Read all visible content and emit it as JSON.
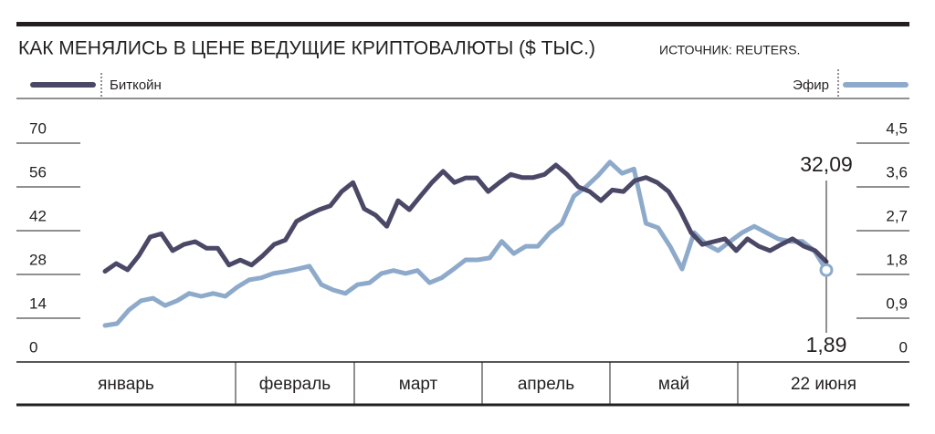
{
  "chart_data": {
    "type": "line",
    "title": "КАК МЕНЯЛИСЬ В ЦЕНЕ ВЕДУЩИЕ КРИПТОВАЛЮТЫ ($ ТЫС.)",
    "source": "ИСТОЧНИК: REUTERS.",
    "month_labels": [
      "январь",
      "февраль",
      "март",
      "апрель",
      "май",
      "22 июня"
    ],
    "ylim": [
      0,
      70
    ],
    "yticks": [
      0,
      14,
      28,
      42,
      56,
      70
    ],
    "y2lim": [
      0,
      4.5
    ],
    "y2ticks": [
      0,
      {
        "value": 0.9,
        "label": "0,9"
      },
      {
        "value": 1.8,
        "label": "1,8"
      },
      {
        "value": 2.7,
        "label": "2,7"
      },
      {
        "value": 3.6,
        "label": "3,6"
      },
      {
        "value": 4.5,
        "label": "4,5"
      }
    ],
    "series": [
      {
        "name": "Биткойн",
        "color": "#4a4866",
        "end_label": "32,09",
        "values": [
          29,
          31.5,
          29.5,
          34,
          40,
          41,
          35.6,
          37.6,
          38.5,
          36.4,
          36.4,
          31,
          32.6,
          31,
          34,
          37.6,
          39,
          45,
          47,
          48.7,
          50,
          54.5,
          57.4,
          49,
          47,
          43.4,
          51.6,
          48.7,
          53.1,
          57.4,
          61,
          57.4,
          58.9,
          58.9,
          54.5,
          57.4,
          60,
          59,
          59,
          60,
          63,
          60,
          56,
          54.5,
          51.6,
          55,
          54.5,
          58,
          59,
          57.4,
          54.5,
          48.7,
          41.4,
          37.6,
          38.5,
          39.4,
          35.6,
          39.4,
          37,
          35.6,
          37.6,
          39.4,
          37,
          35.6,
          32.09
        ]
      },
      {
        "name": "Эфир",
        "color": "#8eaacb",
        "axis": "y2",
        "end_label": "1,89",
        "values": [
          0.75,
          0.79,
          1.07,
          1.26,
          1.31,
          1.16,
          1.26,
          1.41,
          1.35,
          1.41,
          1.35,
          1.54,
          1.69,
          1.73,
          1.82,
          1.86,
          1.91,
          1.97,
          1.59,
          1.48,
          1.41,
          1.59,
          1.63,
          1.82,
          1.88,
          1.82,
          1.88,
          1.63,
          1.73,
          1.91,
          2.1,
          2.1,
          2.14,
          2.48,
          2.23,
          2.38,
          2.38,
          2.66,
          2.85,
          3.41,
          3.6,
          3.83,
          4.11,
          3.88,
          3.97,
          2.85,
          2.76,
          2.38,
          1.91,
          2.66,
          2.42,
          2.29,
          2.48,
          2.66,
          2.79,
          2.66,
          2.53,
          2.48,
          2.48,
          2.29,
          1.89
        ]
      }
    ]
  }
}
